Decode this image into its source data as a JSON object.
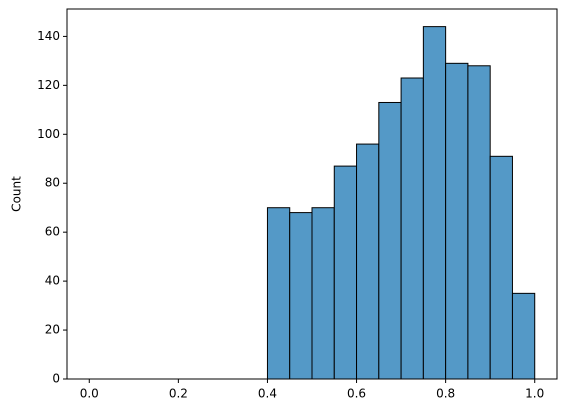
{
  "chart_data": {
    "type": "histogram",
    "y_label": "Count",
    "bins": [
      0,
      0.05,
      0.1,
      0.15,
      0.2,
      0.25,
      0.3,
      0.35,
      0.4,
      0.45,
      0.5,
      0.55,
      0.6,
      0.65,
      0.7,
      0.75,
      0.8,
      0.85,
      0.9,
      0.95,
      1.0
    ],
    "values": [
      0,
      0,
      0,
      0,
      0,
      0,
      0,
      0,
      70,
      68,
      70,
      87,
      96,
      113,
      123,
      144,
      129,
      128,
      91,
      35
    ],
    "color": "#5499c7",
    "xlim": [
      -0.05,
      1.05
    ],
    "xticks": [
      {
        "value": 0,
        "label": "0.0"
      },
      {
        "value": 0.2,
        "label": "0.2"
      },
      {
        "value": 0.4,
        "label": "0.4"
      },
      {
        "value": 0.6,
        "label": "0.6"
      },
      {
        "value": 0.8,
        "label": "0.8"
      },
      {
        "value": 1.0,
        "label": "1.0"
      }
    ],
    "ylim": [
      0,
      151.2
    ],
    "yticks": [
      0,
      20,
      40,
      60,
      80,
      100,
      120,
      140
    ]
  }
}
